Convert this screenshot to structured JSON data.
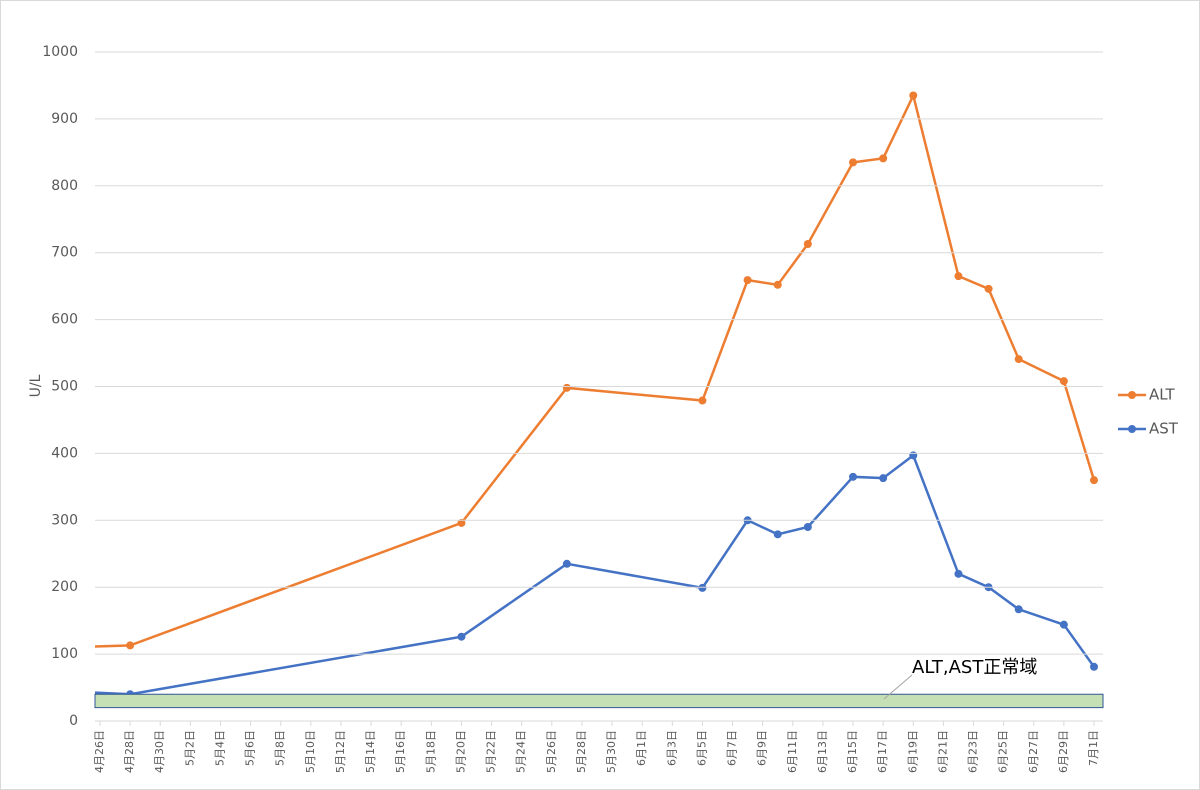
{
  "chart_data": {
    "type": "line",
    "y_label": "U/L",
    "x": [
      "4月25日",
      "4月28日",
      "5月20日",
      "5月27日",
      "6月5日",
      "6月8日",
      "6月10日",
      "6月12日",
      "6月15日",
      "6月17日",
      "6月19日",
      "6月22日",
      "6月24日",
      "6月26日",
      "6月29日",
      "7月1日"
    ],
    "series": [
      {
        "name": "ALT",
        "color": "#ed7d31",
        "values": [
          111,
          113,
          296,
          498,
          479,
          659,
          652,
          713,
          835,
          841,
          935,
          665,
          646,
          541,
          508,
          360
        ]
      },
      {
        "name": "AST",
        "color": "#4472c4",
        "values": [
          43,
          40,
          126,
          235,
          199,
          300,
          279,
          290,
          365,
          363,
          397,
          220,
          200,
          167,
          144,
          81
        ]
      }
    ],
    "normal_range": [
      20,
      40
    ],
    "normal_range_label": "ALT,AST正常域",
    "xlim": [
      "4月26日",
      "7月1日"
    ],
    "xticks": [
      "4月26日",
      "4月28日",
      "4月30日",
      "5月2日",
      "5月4日",
      "5月6日",
      "5月8日",
      "5月10日",
      "5月12日",
      "5月14日",
      "5月16日",
      "5月18日",
      "5月20日",
      "5月22日",
      "5月24日",
      "5月26日",
      "5月28日",
      "5月30日",
      "6月1日",
      "6月3日",
      "6月5日",
      "6月7日",
      "6月9日",
      "6月11日",
      "6月13日",
      "6月15日",
      "6月17日",
      "6月19日",
      "6月21日",
      "6月23日",
      "6月25日",
      "6月27日",
      "6月29日",
      "7月1日"
    ],
    "ylim": [
      0,
      1000
    ],
    "yticks": [
      0,
      100,
      200,
      300,
      400,
      500,
      600,
      700,
      800,
      900,
      1000
    ],
    "grid": true,
    "legend": "right"
  }
}
